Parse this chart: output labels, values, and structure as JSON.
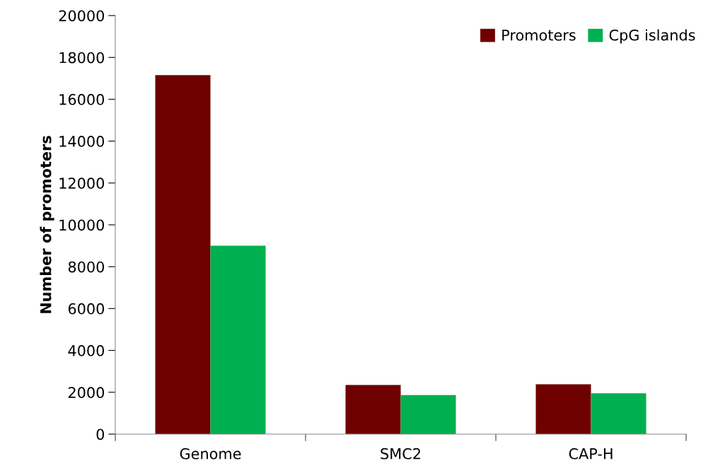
{
  "chart_data": {
    "type": "bar",
    "ylabel": "Number of promoters",
    "categories": [
      "Genome",
      "SMC2",
      "CAP-H"
    ],
    "series": [
      {
        "name": "Promoters",
        "color": "#6f0000",
        "values": [
          17150,
          2350,
          2380
        ]
      },
      {
        "name": "CpG islands",
        "color": "#00b050",
        "values": [
          9000,
          1870,
          1950
        ]
      }
    ],
    "ylim": [
      0,
      20000
    ],
    "yticks": [
      0,
      2000,
      4000,
      6000,
      8000,
      10000,
      12000,
      14000,
      16000,
      18000,
      20000
    ],
    "grid": false,
    "legend": "top right"
  }
}
